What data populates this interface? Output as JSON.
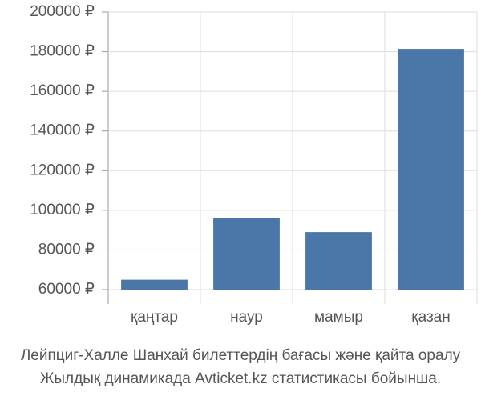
{
  "chart_data": {
    "type": "bar",
    "title": "Лейпциг-Халле Шанхай билеттердің бағасы және қайта оралу\nЖылдық динамикада Avticket.kz статистикасы бойынша.",
    "categories": [
      "қаңтар",
      "наур",
      "мамыр",
      "қазан"
    ],
    "values": [
      65000,
      96300,
      89000,
      181400
    ],
    "color": "#4a77a8",
    "ylim": [
      60000,
      200000
    ],
    "yticks": [
      {
        "value": 60000,
        "label": "60000 ₽"
      },
      {
        "value": 80000,
        "label": "80000 ₽"
      },
      {
        "value": 100000,
        "label": "100000 ₽"
      },
      {
        "value": 120000,
        "label": "120000 ₽"
      },
      {
        "value": 140000,
        "label": "140000 ₽"
      },
      {
        "value": 160000,
        "label": "160000 ₽"
      },
      {
        "value": 180000,
        "label": "180000 ₽"
      },
      {
        "value": 200000,
        "label": "200000 ₽"
      }
    ],
    "grid": true
  }
}
